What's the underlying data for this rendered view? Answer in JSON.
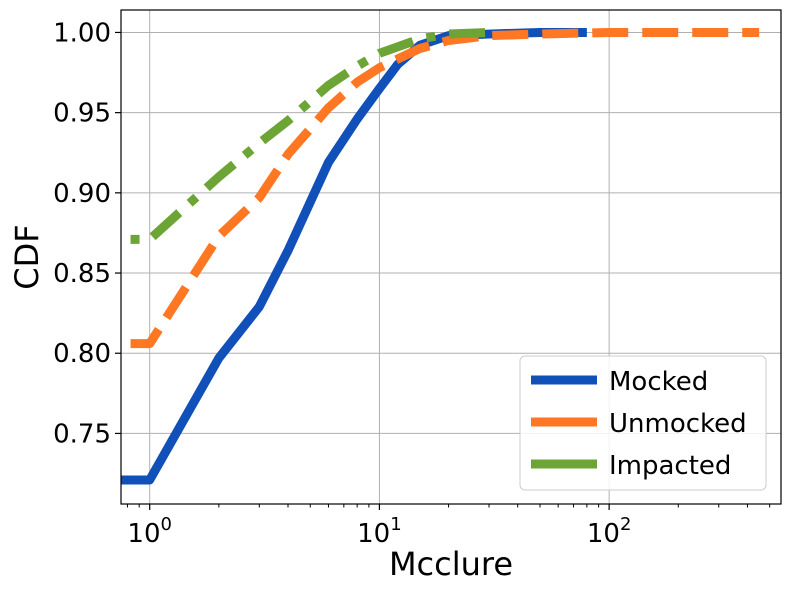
{
  "chart_data": {
    "type": "line",
    "title": "",
    "xlabel": "Mcclure",
    "ylabel": "CDF",
    "xscale": "log",
    "xlim": [
      0.75,
      560
    ],
    "ylim": [
      0.706,
      1.014
    ],
    "grid": true,
    "legend_position": "lower-right",
    "x_ticks": [
      {
        "value": 1,
        "base": "10",
        "exp": "0"
      },
      {
        "value": 10,
        "base": "10",
        "exp": "1"
      },
      {
        "value": 100,
        "base": "10",
        "exp": "2"
      }
    ],
    "y_ticks": [
      {
        "value": 0.75,
        "label": "0.75"
      },
      {
        "value": 0.8,
        "label": "0.80"
      },
      {
        "value": 0.85,
        "label": "0.85"
      },
      {
        "value": 0.9,
        "label": "0.90"
      },
      {
        "value": 0.95,
        "label": "0.95"
      },
      {
        "value": 1.0,
        "label": "1.00"
      }
    ],
    "series": [
      {
        "name": "Mocked",
        "color": "#1050b8",
        "dash": "solid",
        "x": [
          0.5,
          1,
          2,
          3,
          4,
          6,
          8,
          10,
          12,
          15,
          20,
          30,
          50,
          80
        ],
        "y": [
          0.721,
          0.721,
          0.797,
          0.829,
          0.864,
          0.919,
          0.946,
          0.965,
          0.98,
          0.992,
          0.998,
          0.999,
          1.0,
          1.0
        ]
      },
      {
        "name": "Unmocked",
        "color": "#ff7722",
        "dash": "dashed",
        "x": [
          0.5,
          1,
          2,
          3,
          4,
          6,
          8,
          10,
          15,
          20,
          30,
          50,
          100,
          200,
          300,
          450
        ],
        "y": [
          0.806,
          0.806,
          0.873,
          0.897,
          0.924,
          0.953,
          0.969,
          0.978,
          0.99,
          0.995,
          0.998,
          0.999,
          1.0,
          1.0,
          1.0,
          1.0
        ]
      },
      {
        "name": "Impacted",
        "color": "#6ca535",
        "dash": "dashdot",
        "x": [
          0.5,
          1,
          2,
          3,
          4,
          6,
          8,
          10,
          15,
          20,
          30
        ],
        "y": [
          0.871,
          0.871,
          0.91,
          0.931,
          0.945,
          0.967,
          0.979,
          0.987,
          0.996,
          0.999,
          1.0
        ]
      }
    ]
  }
}
